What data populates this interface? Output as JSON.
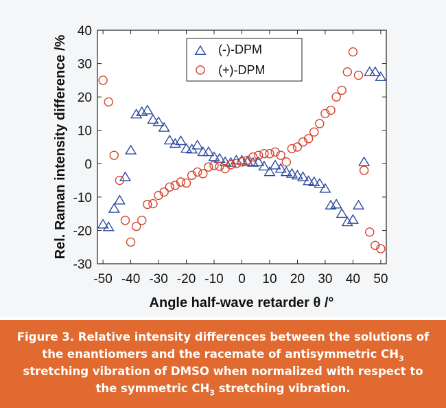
{
  "chart_data": {
    "type": "scatter",
    "xlabel": "Angle half-wave retarder θ /°",
    "ylabel": "Rel. Raman intensity difference /%",
    "xlim": [
      -52,
      52
    ],
    "ylim": [
      -30,
      40
    ],
    "xticks": [
      -50,
      -40,
      -30,
      -20,
      -10,
      0,
      10,
      20,
      30,
      40,
      50
    ],
    "yticks": [
      -30,
      -20,
      -10,
      0,
      10,
      20,
      30,
      40
    ],
    "grid": false,
    "legend_position": "top-center",
    "series": [
      {
        "name": "(-)-DPM",
        "marker": "triangle",
        "color": "#2e4aa0",
        "points": [
          [
            -50,
            -18.2
          ],
          [
            -48,
            -19
          ],
          [
            -46,
            -13.5
          ],
          [
            -44,
            -11
          ],
          [
            -42,
            -4
          ],
          [
            -40,
            4
          ],
          [
            -38,
            14.8
          ],
          [
            -36,
            15.5
          ],
          [
            -34,
            16
          ],
          [
            -32,
            13.2
          ],
          [
            -30,
            12.5
          ],
          [
            -28,
            10.8
          ],
          [
            -26,
            7
          ],
          [
            -24,
            6
          ],
          [
            -22,
            6.8
          ],
          [
            -20,
            4.5
          ],
          [
            -18,
            4.3
          ],
          [
            -16,
            5.5
          ],
          [
            -14,
            3.5
          ],
          [
            -12,
            3.5
          ],
          [
            -10,
            2
          ],
          [
            -8,
            1.5
          ],
          [
            -6,
            0.5
          ],
          [
            -4,
            0.3
          ],
          [
            -2,
            1
          ],
          [
            0,
            1
          ],
          [
            2,
            0.5
          ],
          [
            4,
            0.3
          ],
          [
            6,
            0.5
          ],
          [
            8,
            -0.8
          ],
          [
            10,
            -2.5
          ],
          [
            12,
            -0.5
          ],
          [
            14,
            -1.5
          ],
          [
            16,
            -2.5
          ],
          [
            18,
            -3
          ],
          [
            20,
            -3.5
          ],
          [
            22,
            -4
          ],
          [
            24,
            -5.2
          ],
          [
            26,
            -5.5
          ],
          [
            28,
            -6
          ],
          [
            30,
            -7.5
          ],
          [
            32,
            -12.5
          ],
          [
            34,
            -12.2
          ],
          [
            36,
            -15
          ],
          [
            38,
            -17.5
          ],
          [
            40,
            -16.8
          ],
          [
            42,
            -12.5
          ],
          [
            44,
            0.5
          ],
          [
            46,
            27.5
          ],
          [
            48,
            27.5
          ],
          [
            50,
            26
          ]
        ]
      },
      {
        "name": "(+)-DPM",
        "marker": "circle",
        "color": "#d4432c",
        "points": [
          [
            -50,
            25
          ],
          [
            -48,
            18.5
          ],
          [
            -46,
            2.5
          ],
          [
            -44,
            -5
          ],
          [
            -42,
            -17
          ],
          [
            -40,
            -23.5
          ],
          [
            -38,
            -18.8
          ],
          [
            -36,
            -17
          ],
          [
            -34,
            -12.2
          ],
          [
            -32,
            -12
          ],
          [
            -30,
            -9.5
          ],
          [
            -28,
            -8.5
          ],
          [
            -26,
            -7
          ],
          [
            -24,
            -6.5
          ],
          [
            -22,
            -5.5
          ],
          [
            -20,
            -5.8
          ],
          [
            -18,
            -3.5
          ],
          [
            -16,
            -2.5
          ],
          [
            -14,
            -3
          ],
          [
            -12,
            -1
          ],
          [
            -10,
            -0.5
          ],
          [
            -8,
            -0.8
          ],
          [
            -6,
            -1.5
          ],
          [
            -4,
            -0.3
          ],
          [
            -2,
            0
          ],
          [
            0,
            0.5
          ],
          [
            2,
            1
          ],
          [
            4,
            2
          ],
          [
            6,
            2.5
          ],
          [
            8,
            3
          ],
          [
            10,
            3
          ],
          [
            12,
            3.5
          ],
          [
            14,
            2.5
          ],
          [
            16,
            0.5
          ],
          [
            18,
            4.5
          ],
          [
            20,
            5
          ],
          [
            22,
            6.5
          ],
          [
            24,
            7.5
          ],
          [
            26,
            9.5
          ],
          [
            28,
            12
          ],
          [
            30,
            15
          ],
          [
            32,
            16
          ],
          [
            34,
            20
          ],
          [
            36,
            22
          ],
          [
            38,
            27.5
          ],
          [
            40,
            33.5
          ],
          [
            42,
            26.5
          ],
          [
            44,
            -2
          ],
          [
            46,
            -20.5
          ],
          [
            48,
            -24.5
          ],
          [
            50,
            -25.5
          ]
        ]
      }
    ]
  },
  "caption": {
    "figure_label": "Figure 3.",
    "text_part1": "Relative intensity differences between the solutions of the enantiomers and the racemate of antisymmetric CH",
    "sub1": "3",
    "text_part2": " stretching vibration of DMSO when normalized with respect to the symmetric CH",
    "sub2": "3",
    "text_part3": " stretching vibration."
  }
}
